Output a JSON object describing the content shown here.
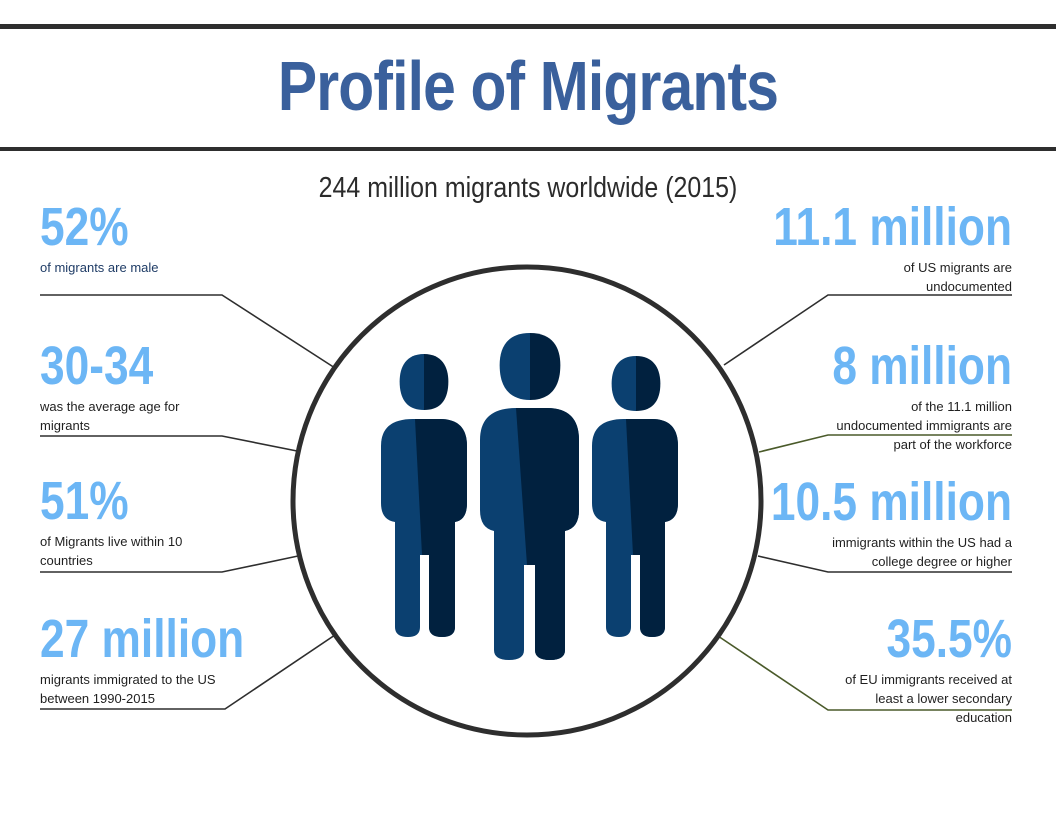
{
  "header": {
    "title": "Profile of Migrants",
    "subtitle": "244 million migrants worldwide  (2015)"
  },
  "colors": {
    "title": "#3a609c",
    "stat_value": "#6cb6f5",
    "figure_light": "#0b4070",
    "figure_dark": "#01213f",
    "rule": "#2e2e2e"
  },
  "icons": {
    "center": "people-group-icon"
  },
  "left_stats": [
    {
      "value": "52%",
      "description": "of migrants are male"
    },
    {
      "value": "30-34",
      "description": "was the average age for migrants"
    },
    {
      "value": "51%",
      "description": "of Migrants live within 10 countries"
    },
    {
      "value": "27 million",
      "description": "migrants immigrated to the US between 1990-2015"
    }
  ],
  "right_stats": [
    {
      "value": "11.1 million",
      "description": "of US migrants are undocumented"
    },
    {
      "value": "8 million",
      "description": "of the 11.1 million undocumented immigrants are part of the workforce"
    },
    {
      "value": "10.5 million",
      "description": "immigrants within the US had a college degree or higher"
    },
    {
      "value": "35.5%",
      "description": "of EU immigrants received at least a lower secondary education"
    }
  ]
}
